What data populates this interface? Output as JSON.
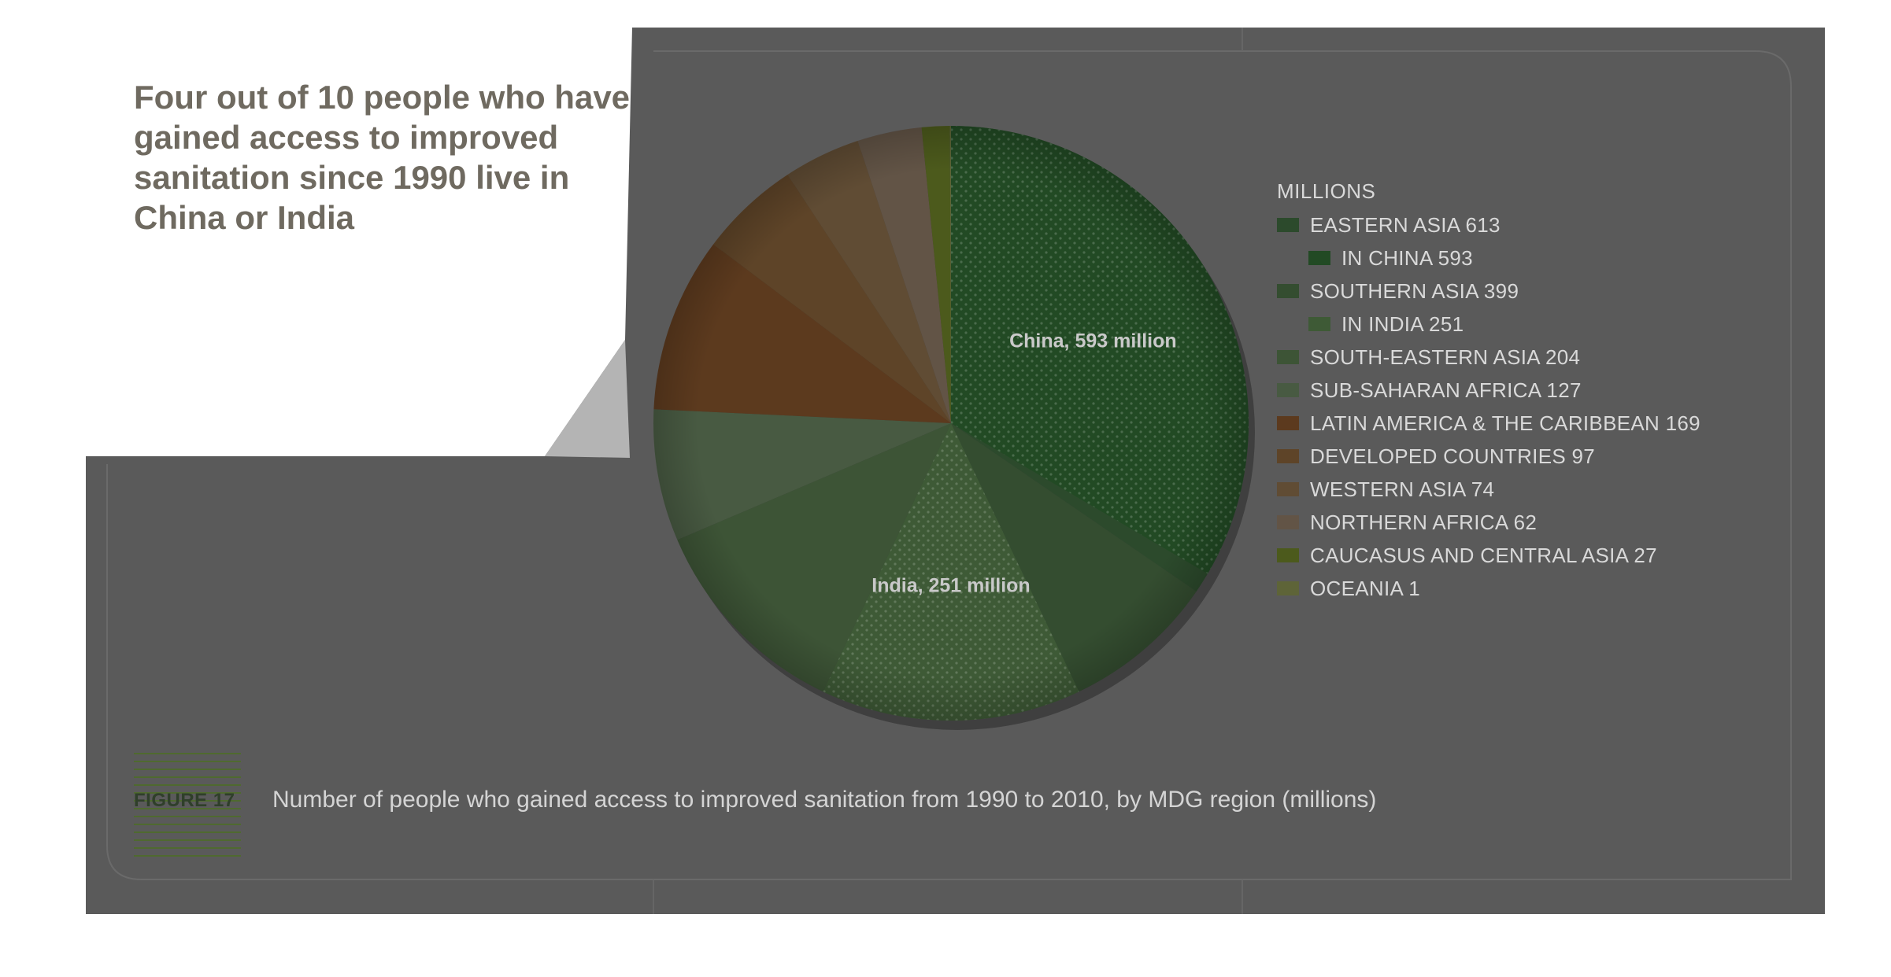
{
  "headline": "Four out of 10 people who have gained access to improved sanitation since 1990 live in China or India",
  "figure": {
    "tag": "FIGURE 17",
    "caption": "Number of people who gained access to improved sanitation from 1990 to 2010, by MDG region (millions)"
  },
  "colors": {
    "panel": "#5a5a5a",
    "panel_border": "#6a6a6a",
    "tag_lines": "#4f6a2f"
  },
  "chart_data": {
    "type": "pie",
    "legend_title": "MILLIONS",
    "legend_position": "right",
    "slices": [
      {
        "label": "EASTERN ASIA",
        "value": 613,
        "color": "#2c4a2c",
        "sub": {
          "label": "IN CHINA",
          "value": 593,
          "annotation": "China, 593 million",
          "color": "#224a24"
        }
      },
      {
        "label": "SOUTHERN ASIA",
        "value": 399,
        "color": "#344d30",
        "sub": {
          "label": "IN INDIA",
          "value": 251,
          "annotation": "India, 251 million",
          "color": "#3e5a36"
        }
      },
      {
        "label": "SOUTH-EASTERN ASIA",
        "value": 204,
        "color": "#3d5436"
      },
      {
        "label": "SUB-SAHARAN AFRICA",
        "value": 127,
        "color": "#485a42"
      },
      {
        "label": "LATIN AMERICA & THE CARIBBEAN",
        "value": 169,
        "color": "#5c3a1e"
      },
      {
        "label": "DEVELOPED COUNTRIES",
        "value": 97,
        "color": "#5e4428"
      },
      {
        "label": "WESTERN ASIA",
        "value": 74,
        "color": "#604c34"
      },
      {
        "label": "NORTHERN AFRICA",
        "value": 62,
        "color": "#625446"
      },
      {
        "label": "CAUCASUS AND CENTRAL ASIA",
        "value": 27,
        "color": "#4c5a1c"
      },
      {
        "label": "OCEANIA",
        "value": 1,
        "color": "#5e6438"
      }
    ]
  }
}
